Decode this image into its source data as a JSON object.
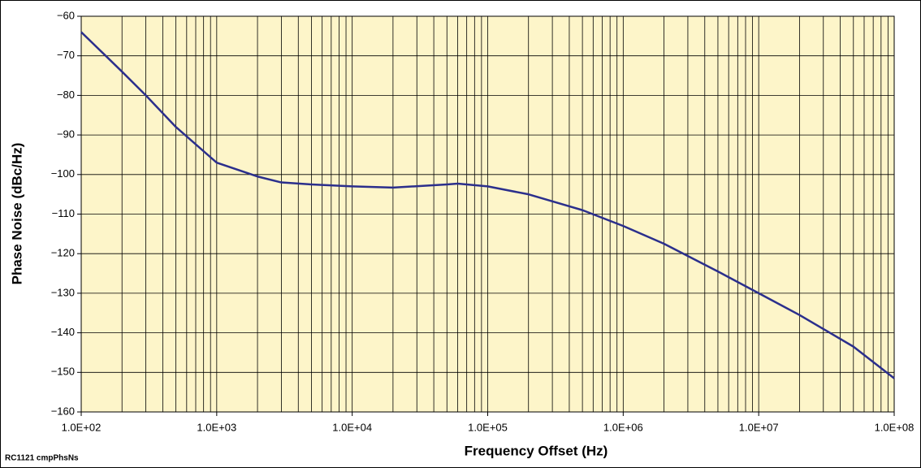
{
  "chart_data": {
    "type": "line",
    "xlabel": "Frequency Offset (Hz)",
    "ylabel": "Phase Noise (dBc/Hz)",
    "footnote": "RC1121 cmpPhsNs",
    "x": [
      100,
      200,
      300,
      500,
      1000,
      2000,
      3000,
      5000,
      10000,
      20000,
      50000,
      60000,
      100000,
      200000,
      500000,
      1000000,
      2000000,
      5000000,
      10000000,
      20000000,
      50000000,
      100000000
    ],
    "values": [
      -64,
      -74,
      -80,
      -88,
      -97,
      -100.5,
      -102,
      -102.5,
      -103,
      -103.3,
      -102.5,
      -102.3,
      -103,
      -105,
      -109,
      -113,
      -117.5,
      -124.5,
      -130,
      -135.5,
      -143.5,
      -151.5
    ],
    "color": "#2b2f8c",
    "xscale": "log",
    "xlim": [
      100,
      100000000
    ],
    "xticks": [
      {
        "value": 100,
        "label": "1.0E+02"
      },
      {
        "value": 1000,
        "label": "1.0E+03"
      },
      {
        "value": 10000,
        "label": "1.0E+04"
      },
      {
        "value": 100000,
        "label": "1.0E+05"
      },
      {
        "value": 1000000,
        "label": "1.0E+06"
      },
      {
        "value": 10000000,
        "label": "1.0E+07"
      },
      {
        "value": 100000000,
        "label": "1.0E+08"
      }
    ],
    "ylim": [
      -160,
      -60
    ],
    "yticks": [
      {
        "value": -160,
        "label": "−160"
      },
      {
        "value": -150,
        "label": "−150"
      },
      {
        "value": -140,
        "label": "−140"
      },
      {
        "value": -130,
        "label": "−130"
      },
      {
        "value": -120,
        "label": "−120"
      },
      {
        "value": -110,
        "label": "−110"
      },
      {
        "value": -100,
        "label": "−100"
      },
      {
        "value": -90,
        "label": "−90"
      },
      {
        "value": -80,
        "label": "−80"
      },
      {
        "value": -70,
        "label": "−70"
      },
      {
        "value": -60,
        "label": "−60"
      }
    ],
    "grid": true,
    "plot_background": "#fdf5c9"
  }
}
